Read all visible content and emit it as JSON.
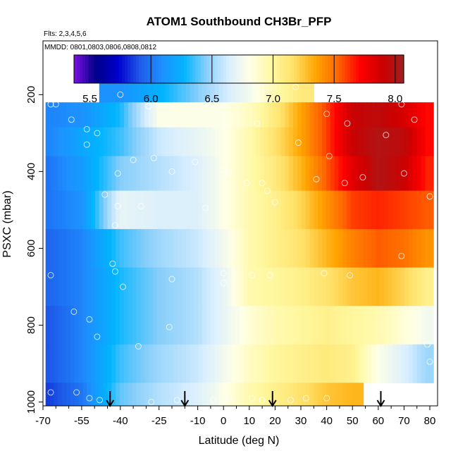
{
  "chart_data": {
    "type": "heatmap",
    "title": "ATOM1 Southbound CH3Br_PFP",
    "note_flights": "Flts: 2,3,4,5,6",
    "note_dates": "MMDD: 0801,0803,0806,0808,0812",
    "xlabel": "Latitude (deg N)",
    "ylabel": "PSXC (mbar)",
    "xlim": [
      -70,
      83
    ],
    "ylim": [
      1010,
      60
    ],
    "x_ticks": [
      -70,
      -55,
      -40,
      -25,
      -10,
      0,
      10,
      20,
      30,
      40,
      50,
      60,
      70,
      80
    ],
    "x_tick_labels": [
      "-70",
      "-55",
      "-40",
      "-25",
      "-10",
      "0",
      "10",
      "20",
      "30",
      "40",
      "50",
      "60",
      "70",
      "80"
    ],
    "y_ticks": [
      200,
      400,
      600,
      800,
      1000
    ],
    "y_tick_labels": [
      "200",
      "400",
      "600",
      "800",
      "1000"
    ],
    "colorbar": {
      "range": [
        5.37,
        8.07
      ],
      "ticks": [
        5.5,
        6.0,
        6.5,
        7.0,
        7.5,
        8.0
      ],
      "tick_labels": [
        "5.5",
        "6.0",
        "6.5",
        "7.0",
        "7.5",
        "8.0"
      ],
      "colors": [
        "#7B10E0",
        "#00008B",
        "#0000CD",
        "#1E5AE8",
        "#1E90FF",
        "#00B4FF",
        "#87CEFA",
        "#D8EEFF",
        "#FFFFE6",
        "#FFF8A0",
        "#FFE066",
        "#FFA500",
        "#FF6600",
        "#FF0000",
        "#CC0000",
        "#A02020"
      ]
    },
    "field_latitudes": [
      -68,
      -55,
      -40,
      -25,
      -10,
      0,
      10,
      20,
      30,
      40,
      50,
      60,
      70,
      79
    ],
    "field_pressures": [
      190,
      250,
      320,
      400,
      500,
      600,
      700,
      800,
      900,
      1000
    ],
    "field_values": [
      [
        null,
        null,
        6.1,
        6.25,
        6.45,
        6.6,
        6.75,
        6.95,
        7.1,
        null,
        null,
        null,
        null,
        null
      ],
      [
        6.05,
        6.1,
        6.3,
        6.8,
        6.8,
        6.8,
        6.9,
        7.1,
        7.35,
        7.6,
        7.9,
        7.95,
        7.85,
        7.7
      ],
      [
        6.05,
        6.2,
        6.35,
        6.6,
        6.7,
        6.8,
        6.95,
        7.15,
        7.35,
        7.6,
        7.9,
        8.0,
        7.95,
        7.7
      ],
      [
        6.0,
        6.15,
        6.45,
        6.55,
        6.65,
        6.8,
        6.95,
        7.1,
        7.3,
        7.55,
        7.8,
        8.0,
        7.9,
        7.65
      ],
      [
        6.0,
        6.1,
        6.7,
        6.65,
        6.65,
        6.8,
        6.95,
        7.05,
        7.2,
        7.4,
        7.6,
        7.65,
        7.6,
        7.55
      ],
      [
        5.95,
        6.05,
        6.35,
        6.5,
        6.6,
        6.75,
        6.95,
        7.05,
        7.15,
        7.3,
        7.45,
        7.55,
        7.5,
        7.4
      ],
      [
        5.95,
        6.05,
        6.3,
        6.45,
        6.55,
        6.7,
        6.95,
        7.0,
        7.05,
        7.15,
        7.25,
        7.3,
        7.2,
        7.05
      ],
      [
        5.9,
        6.05,
        6.3,
        6.45,
        6.55,
        6.7,
        6.85,
        6.95,
        7.0,
        7.05,
        7.0,
        6.95,
        6.85,
        6.75
      ],
      [
        5.9,
        6.05,
        6.35,
        6.5,
        6.6,
        6.75,
        6.9,
        7.0,
        7.05,
        7.1,
        7.05,
        6.8,
        6.65,
        6.5
      ],
      [
        5.85,
        6.0,
        6.4,
        6.55,
        6.65,
        6.8,
        6.95,
        7.05,
        7.15,
        7.25,
        7.3,
        null,
        null,
        null
      ]
    ],
    "sample_points": [
      {
        "lat": -40,
        "p": 200
      },
      {
        "lat": -67,
        "p": 225
      },
      {
        "lat": -65,
        "p": 225
      },
      {
        "lat": -29,
        "p": 230
      },
      {
        "lat": -6,
        "p": 220
      },
      {
        "lat": 28,
        "p": 180
      },
      {
        "lat": 69,
        "p": 225
      },
      {
        "lat": -59,
        "p": 265
      },
      {
        "lat": -53,
        "p": 290
      },
      {
        "lat": -49,
        "p": 300
      },
      {
        "lat": 13,
        "p": 275
      },
      {
        "lat": 40,
        "p": 250
      },
      {
        "lat": 48,
        "p": 275
      },
      {
        "lat": 63,
        "p": 305
      },
      {
        "lat": 74,
        "p": 265
      },
      {
        "lat": -53,
        "p": 330
      },
      {
        "lat": -27,
        "p": 365
      },
      {
        "lat": -35,
        "p": 370
      },
      {
        "lat": -41,
        "p": 405
      },
      {
        "lat": -20,
        "p": 400
      },
      {
        "lat": -11,
        "p": 375
      },
      {
        "lat": 29,
        "p": 325
      },
      {
        "lat": 41,
        "p": 360
      },
      {
        "lat": 0,
        "p": 395
      },
      {
        "lat": 2,
        "p": 405
      },
      {
        "lat": 9,
        "p": 430
      },
      {
        "lat": 15,
        "p": 430
      },
      {
        "lat": 17,
        "p": 450
      },
      {
        "lat": 36,
        "p": 420
      },
      {
        "lat": 47,
        "p": 430
      },
      {
        "lat": 54,
        "p": 415
      },
      {
        "lat": 70,
        "p": 405
      },
      {
        "lat": -46,
        "p": 460
      },
      {
        "lat": -41,
        "p": 490
      },
      {
        "lat": -32,
        "p": 490
      },
      {
        "lat": -7,
        "p": 495
      },
      {
        "lat": 20,
        "p": 480
      },
      {
        "lat": 80,
        "p": 465
      },
      {
        "lat": -42,
        "p": 540
      },
      {
        "lat": -43,
        "p": 640
      },
      {
        "lat": -42,
        "p": 660
      },
      {
        "lat": -67,
        "p": 670
      },
      {
        "lat": -39,
        "p": 700
      },
      {
        "lat": -20,
        "p": 680
      },
      {
        "lat": 0,
        "p": 665
      },
      {
        "lat": 11,
        "p": 670
      },
      {
        "lat": 18,
        "p": 670
      },
      {
        "lat": 0,
        "p": 690
      },
      {
        "lat": 39,
        "p": 665
      },
      {
        "lat": 49,
        "p": 670
      },
      {
        "lat": 69,
        "p": 620
      },
      {
        "lat": -58,
        "p": 765
      },
      {
        "lat": -52,
        "p": 785
      },
      {
        "lat": -49,
        "p": 830
      },
      {
        "lat": -21,
        "p": 805
      },
      {
        "lat": -33,
        "p": 855
      },
      {
        "lat": 79,
        "p": 850
      },
      {
        "lat": 80,
        "p": 895
      },
      {
        "lat": -67,
        "p": 975
      },
      {
        "lat": -57,
        "p": 975
      },
      {
        "lat": -52,
        "p": 990
      },
      {
        "lat": -48,
        "p": 995
      },
      {
        "lat": -28,
        "p": 1000
      },
      {
        "lat": -18,
        "p": 995
      },
      {
        "lat": -4,
        "p": 995
      },
      {
        "lat": 2,
        "p": 990
      },
      {
        "lat": 11,
        "p": 990
      },
      {
        "lat": 15,
        "p": 995
      },
      {
        "lat": 26,
        "p": 995
      },
      {
        "lat": 32,
        "p": 990
      },
      {
        "lat": 40,
        "p": 990
      },
      {
        "lat": 58,
        "p": 1000
      }
    ],
    "arrow_latitudes": [
      -44,
      -15,
      19,
      61
    ]
  }
}
